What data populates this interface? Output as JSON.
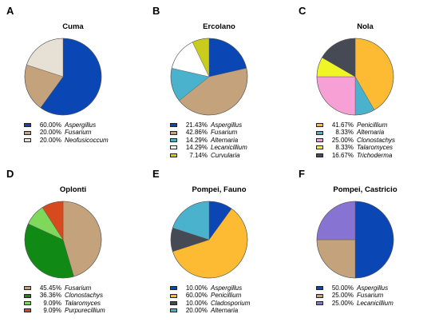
{
  "chart_data": [
    {
      "type": "pie",
      "letter": "A",
      "title": "Cuma",
      "slices": [
        {
          "label": "Aspergillus",
          "value": 60.0,
          "value_label": "60.00%",
          "color": "#0a47b4"
        },
        {
          "label": "Fusarium",
          "value": 20.0,
          "value_label": "20.00%",
          "color": "#c4a27c"
        },
        {
          "label": "Neofusicoccum",
          "value": 20.0,
          "value_label": "20.00%",
          "color": "#e6e0d5"
        }
      ]
    },
    {
      "type": "pie",
      "letter": "B",
      "title": "Ercolano",
      "slices": [
        {
          "label": "Aspergillus",
          "value": 21.43,
          "value_label": "21.43%",
          "color": "#0a47b4"
        },
        {
          "label": "Fusarium",
          "value": 42.86,
          "value_label": "42.86%",
          "color": "#c4a27c"
        },
        {
          "label": "Alternaria",
          "value": 14.29,
          "value_label": "14.29%",
          "color": "#4ab2cc"
        },
        {
          "label": "Lecanicillium",
          "value": 14.29,
          "value_label": "14.29%",
          "color": "#ffffff"
        },
        {
          "label": "Curvularia",
          "value": 7.14,
          "value_label": "7.14%",
          "color": "#c9cc1a"
        }
      ]
    },
    {
      "type": "pie",
      "letter": "C",
      "title": "Nola",
      "slices": [
        {
          "label": "Penicillium",
          "value": 41.67,
          "value_label": "41.67%",
          "color": "#fcbb33"
        },
        {
          "label": "Alternaria",
          "value": 8.33,
          "value_label": "8.33%",
          "color": "#4ab2cc"
        },
        {
          "label": "Clonostachys",
          "value": 25.0,
          "value_label": "25.00%",
          "color": "#f7a0d6"
        },
        {
          "label": "Talaromyces",
          "value": 8.33,
          "value_label": "8.33%",
          "color": "#f0f526"
        },
        {
          "label": "Trichoderma",
          "value": 16.67,
          "value_label": "16.67%",
          "color": "#454a55"
        }
      ]
    },
    {
      "type": "pie",
      "letter": "D",
      "title": "Oplonti",
      "slices": [
        {
          "label": "Fusarium",
          "value": 45.45,
          "value_label": "45.45%",
          "color": "#c4a27c"
        },
        {
          "label": "Clonostachys",
          "value": 36.36,
          "value_label": "36.36%",
          "color": "#108a14"
        },
        {
          "label": "Talaromyces",
          "value": 9.09,
          "value_label": "9.09%",
          "color": "#7ed85c"
        },
        {
          "label": "Purpurecillium",
          "value": 9.09,
          "value_label": "9.09%",
          "color": "#d64a1e"
        }
      ]
    },
    {
      "type": "pie",
      "letter": "E",
      "title": "Pompei, Fauno",
      "slices": [
        {
          "label": "Aspergillus",
          "value": 10.0,
          "value_label": "10.00%",
          "color": "#0a47b4"
        },
        {
          "label": "Penicillium",
          "value": 60.0,
          "value_label": "60.00%",
          "color": "#fcbb33"
        },
        {
          "label": "Cladosporium",
          "value": 10.0,
          "value_label": "10.00%",
          "color": "#454a55"
        },
        {
          "label": "Alternaria",
          "value": 20.0,
          "value_label": "20.00%",
          "color": "#4ab2cc"
        }
      ]
    },
    {
      "type": "pie",
      "letter": "F",
      "title": "Pompei, Castricio",
      "slices": [
        {
          "label": "Aspergillus",
          "value": 50.0,
          "value_label": "50.00%",
          "color": "#0a47b4"
        },
        {
          "label": "Fusarium",
          "value": 25.0,
          "value_label": "25.00%",
          "color": "#c4a27c"
        },
        {
          "label": "Lecanicillium",
          "value": 25.0,
          "value_label": "25.00%",
          "color": "#8673d2"
        }
      ]
    }
  ]
}
